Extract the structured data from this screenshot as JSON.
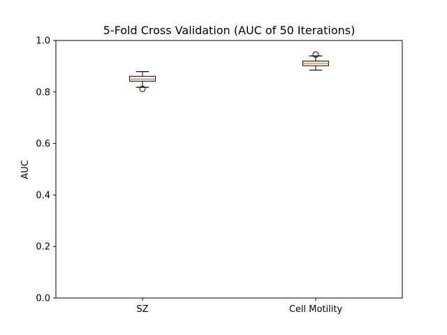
{
  "chart_data": {
    "type": "box",
    "title": "5-Fold Cross Validation (AUC of 50 Iterations)",
    "xlabel": "",
    "ylabel": "AUC",
    "ylim": [
      0.0,
      1.0
    ],
    "yticks": [
      "0.0",
      "0.2",
      "0.4",
      "0.6",
      "0.8",
      "1.0"
    ],
    "categories": [
      "SZ",
      "Cell Motility"
    ],
    "boxes": [
      {
        "name": "SZ",
        "whisker_low": 0.818,
        "q1": 0.842,
        "median": 0.85,
        "q3": 0.861,
        "whisker_high": 0.879,
        "outliers": [
          0.812
        ]
      },
      {
        "name": "Cell Motility",
        "whisker_low": 0.885,
        "q1": 0.902,
        "median": 0.911,
        "q3": 0.92,
        "whisker_high": 0.94,
        "outliers": [
          0.945
        ]
      }
    ],
    "grid": false,
    "colors": {
      "median": "#ff7f0e",
      "box": "#000000",
      "axes": "#000000"
    }
  }
}
